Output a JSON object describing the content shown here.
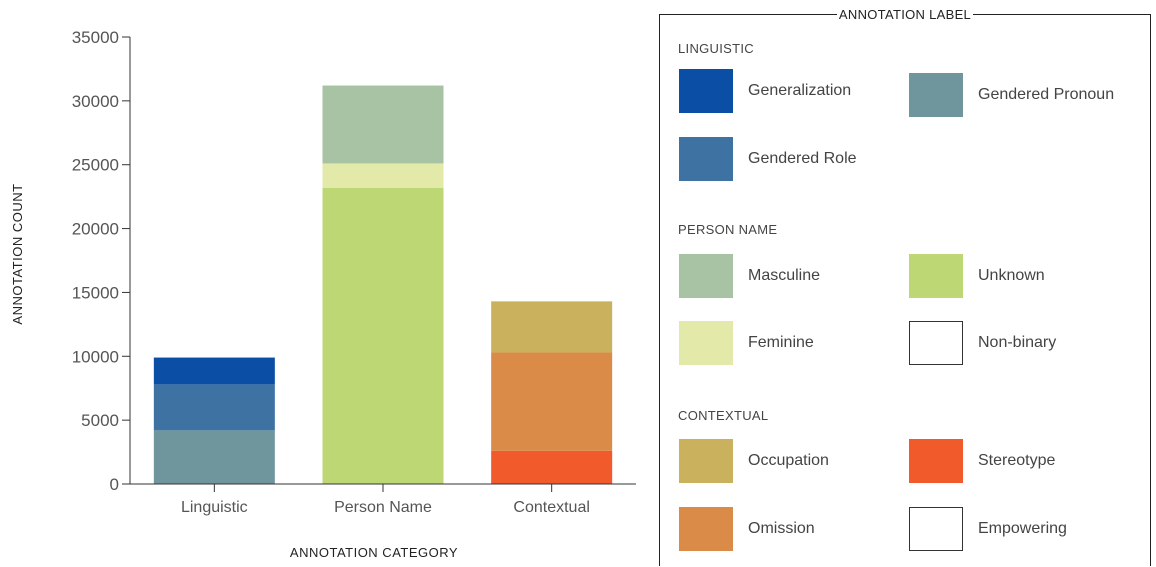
{
  "chart_data": {
    "type": "bar",
    "stacked": true,
    "categories": [
      "Linguistic",
      "Person Name",
      "Contextual"
    ],
    "xlabel": "ANNOTATION CATEGORY",
    "ylabel": "ANNOTATION COUNT",
    "ylim": [
      0,
      35000
    ],
    "yticks": [
      0,
      5000,
      10000,
      15000,
      20000,
      25000,
      30000,
      35000
    ],
    "series": [
      {
        "name": "Gendered Pronoun",
        "color": "#6f969c",
        "values": [
          4200,
          0,
          0
        ]
      },
      {
        "name": "Gendered Role",
        "color": "#3d72a3",
        "values": [
          3600,
          0,
          0
        ]
      },
      {
        "name": "Generalization",
        "color": "#0a4ea5",
        "values": [
          2100,
          0,
          0
        ]
      },
      {
        "name": "Unknown",
        "color": "#bdd775",
        "values": [
          0,
          23200,
          0
        ]
      },
      {
        "name": "Feminine",
        "color": "#e3eaa9",
        "values": [
          0,
          1900,
          0
        ]
      },
      {
        "name": "Masculine",
        "color": "#a8c2a4",
        "values": [
          0,
          6100,
          0
        ]
      },
      {
        "name": "Stereotype",
        "color": "#f15a2b",
        "values": [
          0,
          0,
          2600
        ]
      },
      {
        "name": "Omission",
        "color": "#d98b47",
        "values": [
          0,
          0,
          7700
        ]
      },
      {
        "name": "Occupation",
        "color": "#c9b15e",
        "values": [
          0,
          0,
          4000
        ]
      }
    ]
  },
  "legend": {
    "title": "ANNOTATION LABEL",
    "groups": [
      {
        "title": "LINGUISTIC",
        "items": [
          {
            "label": "Generalization",
            "color": "#0a4ea5"
          },
          {
            "label": "Gendered Pronoun",
            "color": "#6f969c"
          },
          {
            "label": "Gendered Role",
            "color": "#3d72a3"
          }
        ]
      },
      {
        "title": "PERSON NAME",
        "items": [
          {
            "label": "Masculine",
            "color": "#a8c2a4"
          },
          {
            "label": "Unknown",
            "color": "#bdd775"
          },
          {
            "label": "Feminine",
            "color": "#e3eaa9"
          },
          {
            "label": "Non-binary",
            "color": "#ffffff"
          }
        ]
      },
      {
        "title": "CONTEXTUAL",
        "items": [
          {
            "label": "Occupation",
            "color": "#c9b15e"
          },
          {
            "label": "Stereotype",
            "color": "#f15a2b"
          },
          {
            "label": "Omission",
            "color": "#d98b47"
          },
          {
            "label": "Empowering",
            "color": "#ffffff"
          }
        ]
      }
    ]
  }
}
